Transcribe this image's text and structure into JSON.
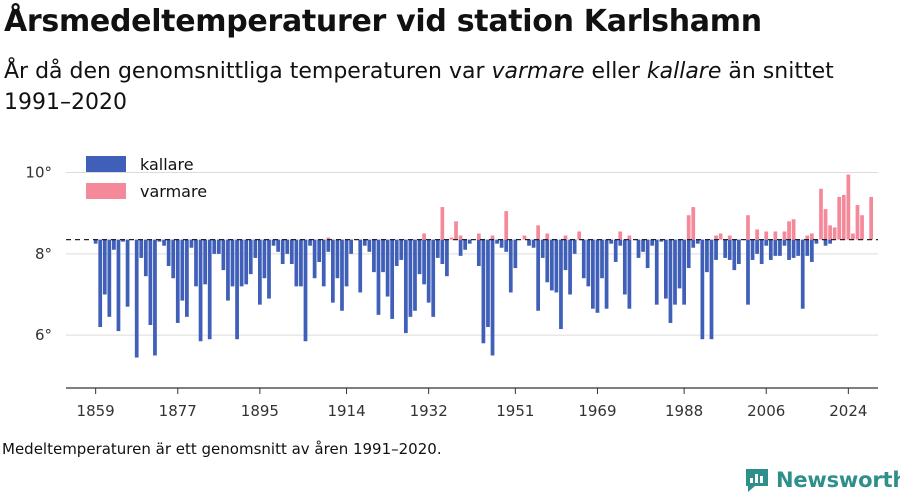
{
  "title": "Årsmedeltemperaturer vid station Karlshamn",
  "subtitle": {
    "part1": "År då den genomsnittliga temperaturen var ",
    "em1": "varmare",
    "part2": " eller ",
    "em2": "kallare",
    "part3": " än snittet 1991–2020"
  },
  "note": "Medeltemperaturen är ett genomsnitt av åren 1991–2020.",
  "brand": "Newsworthy",
  "colors": {
    "kallare": "#3f5fb8",
    "varmare": "#f4899a",
    "accent": "#2f8f8a"
  },
  "chart_data": {
    "type": "bar",
    "baseline": 8.35,
    "ylim": [
      4.7,
      10.8
    ],
    "yticks": [
      6,
      8,
      10
    ],
    "ytick_labels": [
      "6°",
      "8°",
      "10°"
    ],
    "xticks": [
      1859,
      1877,
      1895,
      1914,
      1932,
      1951,
      1969,
      1988,
      2006,
      2024
    ],
    "xlim": [
      1852.5,
      2030.5
    ],
    "legend": {
      "position": "top-left",
      "entries": [
        "kallare",
        "varmare"
      ]
    },
    "series": [
      {
        "name": "kallare",
        "points": [
          [
            1859,
            8.25
          ],
          [
            1860,
            6.2
          ],
          [
            1861,
            7.0
          ],
          [
            1862,
            6.45
          ],
          [
            1863,
            8.1
          ],
          [
            1864,
            6.1
          ],
          [
            1865,
            8.3
          ],
          [
            1866,
            6.7
          ],
          [
            1868,
            5.45
          ],
          [
            1869,
            7.9
          ],
          [
            1870,
            7.45
          ],
          [
            1871,
            6.25
          ],
          [
            1872,
            5.5
          ],
          [
            1873,
            8.3
          ],
          [
            1874,
            8.2
          ],
          [
            1875,
            7.7
          ],
          [
            1876,
            7.4
          ],
          [
            1877,
            6.3
          ],
          [
            1878,
            6.85
          ],
          [
            1879,
            6.45
          ],
          [
            1880,
            8.15
          ],
          [
            1881,
            7.2
          ],
          [
            1882,
            5.85
          ],
          [
            1883,
            7.25
          ],
          [
            1884,
            5.9
          ],
          [
            1885,
            8.0
          ],
          [
            1886,
            8.0
          ],
          [
            1887,
            7.6
          ],
          [
            1888,
            6.85
          ],
          [
            1889,
            7.2
          ],
          [
            1890,
            5.9
          ],
          [
            1891,
            7.2
          ],
          [
            1892,
            7.25
          ],
          [
            1893,
            7.5
          ],
          [
            1894,
            7.9
          ],
          [
            1895,
            6.75
          ],
          [
            1896,
            7.4
          ],
          [
            1897,
            6.9
          ],
          [
            1898,
            8.2
          ],
          [
            1899,
            8.05
          ],
          [
            1900,
            7.75
          ],
          [
            1901,
            8.0
          ],
          [
            1902,
            7.75
          ],
          [
            1903,
            7.2
          ],
          [
            1904,
            7.2
          ],
          [
            1905,
            5.85
          ],
          [
            1906,
            8.2
          ],
          [
            1907,
            7.4
          ],
          [
            1908,
            7.8
          ],
          [
            1909,
            7.2
          ],
          [
            1910,
            8.05
          ],
          [
            1911,
            6.8
          ],
          [
            1912,
            7.4
          ],
          [
            1913,
            6.6
          ],
          [
            1914,
            7.2
          ],
          [
            1915,
            8.0
          ],
          [
            1917,
            7.05
          ],
          [
            1918,
            8.2
          ],
          [
            1919,
            8.05
          ],
          [
            1920,
            7.55
          ],
          [
            1921,
            6.5
          ],
          [
            1922,
            7.55
          ],
          [
            1923,
            6.95
          ],
          [
            1924,
            6.4
          ],
          [
            1925,
            7.7
          ],
          [
            1926,
            7.85
          ],
          [
            1927,
            6.05
          ],
          [
            1928,
            6.45
          ],
          [
            1929,
            6.6
          ],
          [
            1930,
            7.5
          ],
          [
            1931,
            7.25
          ],
          [
            1932,
            6.8
          ],
          [
            1933,
            6.45
          ],
          [
            1934,
            7.9
          ],
          [
            1935,
            7.75
          ],
          [
            1936,
            7.45
          ],
          [
            1939,
            7.95
          ],
          [
            1940,
            8.1
          ],
          [
            1941,
            8.25
          ],
          [
            1943,
            7.7
          ],
          [
            1944,
            5.8
          ],
          [
            1945,
            6.2
          ],
          [
            1946,
            5.5
          ],
          [
            1947,
            8.25
          ],
          [
            1948,
            8.15
          ],
          [
            1949,
            8.05
          ],
          [
            1950,
            7.05
          ],
          [
            1951,
            7.65
          ],
          [
            1954,
            8.2
          ],
          [
            1955,
            8.15
          ],
          [
            1956,
            6.6
          ],
          [
            1957,
            7.9
          ],
          [
            1958,
            7.3
          ],
          [
            1959,
            7.1
          ],
          [
            1960,
            7.05
          ],
          [
            1961,
            6.15
          ],
          [
            1962,
            7.6
          ],
          [
            1963,
            7.0
          ],
          [
            1964,
            8.0
          ],
          [
            1966,
            7.4
          ],
          [
            1967,
            7.2
          ],
          [
            1968,
            6.65
          ],
          [
            1969,
            6.55
          ],
          [
            1970,
            7.4
          ],
          [
            1971,
            6.65
          ],
          [
            1972,
            8.25
          ],
          [
            1973,
            7.8
          ],
          [
            1974,
            8.2
          ],
          [
            1975,
            7.0
          ],
          [
            1976,
            6.65
          ],
          [
            1978,
            7.9
          ],
          [
            1979,
            8.05
          ],
          [
            1980,
            7.65
          ],
          [
            1981,
            8.2
          ],
          [
            1982,
            6.75
          ],
          [
            1983,
            8.3
          ],
          [
            1984,
            6.9
          ],
          [
            1985,
            6.3
          ],
          [
            1986,
            6.75
          ],
          [
            1987,
            7.15
          ],
          [
            1988,
            6.75
          ],
          [
            1989,
            7.65
          ],
          [
            1990,
            8.15
          ],
          [
            1991,
            8.25
          ],
          [
            1992,
            5.9
          ],
          [
            1993,
            7.55
          ],
          [
            1994,
            5.9
          ],
          [
            1995,
            7.85
          ],
          [
            1997,
            7.9
          ],
          [
            1998,
            7.85
          ],
          [
            1999,
            7.6
          ],
          [
            2000,
            7.75
          ],
          [
            2002,
            6.75
          ],
          [
            2003,
            7.85
          ],
          [
            2004,
            8.0
          ],
          [
            2005,
            7.75
          ],
          [
            2006,
            8.2
          ],
          [
            2007,
            7.85
          ],
          [
            2008,
            7.95
          ],
          [
            2009,
            7.95
          ],
          [
            2010,
            8.2
          ],
          [
            2011,
            7.85
          ],
          [
            2012,
            7.9
          ],
          [
            2013,
            7.95
          ],
          [
            2014,
            6.65
          ],
          [
            2015,
            7.95
          ],
          [
            2016,
            7.8
          ],
          [
            2017,
            8.25
          ],
          [
            2019,
            8.2
          ],
          [
            2020,
            8.25
          ]
        ]
      },
      {
        "name": "varmare",
        "points": [
          [
            1910,
            8.4
          ],
          [
            1931,
            8.5
          ],
          [
            1935,
            9.15
          ],
          [
            1937,
            8.4
          ],
          [
            1938,
            8.8
          ],
          [
            1939,
            8.45
          ],
          [
            1943,
            8.5
          ],
          [
            1946,
            8.45
          ],
          [
            1949,
            9.05
          ],
          [
            1953,
            8.45
          ],
          [
            1956,
            8.7
          ],
          [
            1958,
            8.5
          ],
          [
            1962,
            8.45
          ],
          [
            1965,
            8.55
          ],
          [
            1974,
            8.55
          ],
          [
            1976,
            8.45
          ],
          [
            1989,
            8.95
          ],
          [
            1990,
            9.15
          ],
          [
            1995,
            8.45
          ],
          [
            1996,
            8.5
          ],
          [
            1998,
            8.45
          ],
          [
            2002,
            8.95
          ],
          [
            2004,
            8.6
          ],
          [
            2006,
            8.55
          ],
          [
            2008,
            8.55
          ],
          [
            2010,
            8.55
          ],
          [
            2011,
            8.8
          ],
          [
            2012,
            8.85
          ],
          [
            2015,
            8.45
          ],
          [
            2016,
            8.5
          ],
          [
            2018,
            9.6
          ],
          [
            2019,
            9.1
          ],
          [
            2020,
            8.7
          ],
          [
            2021,
            8.65
          ],
          [
            2022,
            9.4
          ],
          [
            2023,
            9.45
          ],
          [
            2024,
            9.95
          ],
          [
            2025,
            8.5
          ],
          [
            2026,
            9.2
          ],
          [
            2027,
            8.95
          ],
          [
            2029,
            9.4
          ]
        ]
      }
    ]
  }
}
